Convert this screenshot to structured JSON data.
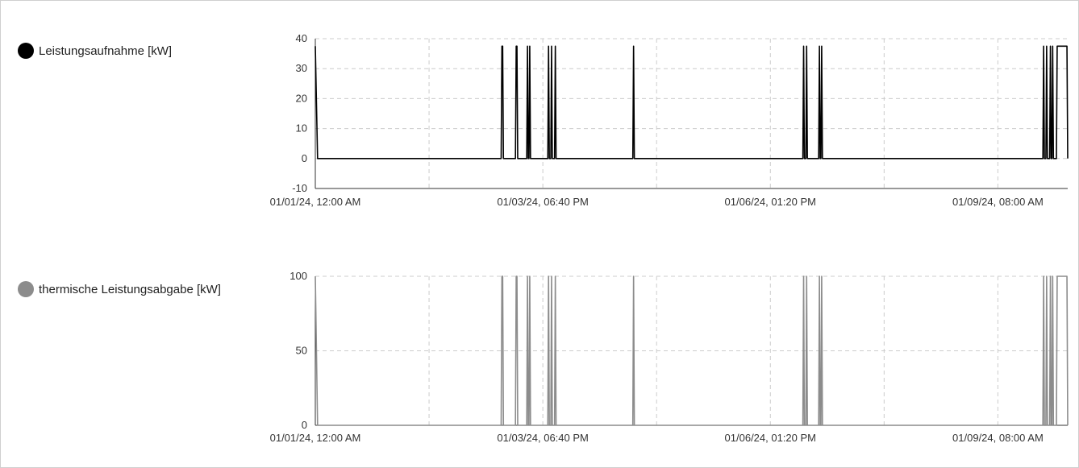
{
  "chart_data": [
    {
      "type": "line",
      "name": "Leistungsaufnahme [kW]",
      "color": "#000000",
      "ylim": [
        -10,
        40
      ],
      "yticks": [
        -10,
        0,
        10,
        20,
        30,
        40
      ],
      "xlim": [
        0,
        1.0
      ],
      "xticks": [
        {
          "pos": 0.0,
          "label": "01/01/24, 12:00 AM"
        },
        {
          "pos": 0.3024,
          "label": "01/03/24, 06:40 PM"
        },
        {
          "pos": 0.6048,
          "label": "01/06/24, 01:20 PM"
        },
        {
          "pos": 0.9072,
          "label": "01/09/24, 08:00 AM"
        }
      ],
      "peak": 37.5,
      "pulses": [
        [
          0.0,
          0.003
        ],
        [
          0.247,
          0.25
        ],
        [
          0.266,
          0.269
        ],
        [
          0.281,
          0.283
        ],
        [
          0.284,
          0.286
        ],
        [
          0.309,
          0.311
        ],
        [
          0.313,
          0.315
        ],
        [
          0.318,
          0.32
        ],
        [
          0.422,
          0.424
        ],
        [
          0.648,
          0.65
        ],
        [
          0.652,
          0.654
        ],
        [
          0.669,
          0.671
        ],
        [
          0.672,
          0.674
        ],
        [
          0.967,
          0.969
        ],
        [
          0.971,
          0.973
        ],
        [
          0.976,
          0.978
        ],
        [
          0.979,
          0.981
        ],
        [
          0.985,
          1.0
        ]
      ],
      "grid": true
    },
    {
      "type": "line",
      "name": "thermische Leistungsabgabe [kW]",
      "color": "#8c8c8c",
      "ylim": [
        0,
        100
      ],
      "yticks": [
        0,
        50,
        100
      ],
      "xlim": [
        0,
        1.0
      ],
      "xticks": [
        {
          "pos": 0.0,
          "label": "01/01/24, 12:00 AM"
        },
        {
          "pos": 0.3024,
          "label": "01/03/24, 06:40 PM"
        },
        {
          "pos": 0.6048,
          "label": "01/06/24, 01:20 PM"
        },
        {
          "pos": 0.9072,
          "label": "01/09/24, 08:00 AM"
        }
      ],
      "peak": 100,
      "pulses": [
        [
          0.0,
          0.003
        ],
        [
          0.247,
          0.25
        ],
        [
          0.266,
          0.269
        ],
        [
          0.281,
          0.283
        ],
        [
          0.284,
          0.286
        ],
        [
          0.309,
          0.311
        ],
        [
          0.313,
          0.315
        ],
        [
          0.318,
          0.32
        ],
        [
          0.422,
          0.424
        ],
        [
          0.648,
          0.65
        ],
        [
          0.652,
          0.654
        ],
        [
          0.669,
          0.671
        ],
        [
          0.672,
          0.674
        ],
        [
          0.967,
          0.969
        ],
        [
          0.971,
          0.973
        ],
        [
          0.976,
          0.978
        ],
        [
          0.979,
          0.981
        ],
        [
          0.985,
          1.0
        ]
      ],
      "grid": true
    }
  ]
}
